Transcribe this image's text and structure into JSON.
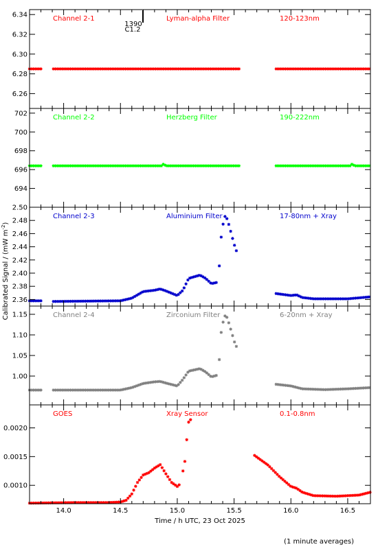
{
  "chart_data": {
    "type": "scatter",
    "marker": "asterisk",
    "xlabel": "Time / h UTC, 23 Oct 2025",
    "ylabel": "Calibrated Signal / (mW m",
    "ylabel_sup": "-2",
    "ylabel_close": ")",
    "footer": "(1 minute averages)",
    "xlim": [
      13.7,
      16.7
    ],
    "x_ticks": [
      "14.0",
      "14.5",
      "15.0",
      "15.5",
      "16.0",
      "16.5"
    ],
    "flare_marker": {
      "time": 14.705,
      "label_top": "1390",
      "label_bottom": "C1.2"
    },
    "panels": [
      {
        "name": "Channel 2-1",
        "filter": "Lyman-alpha Filter",
        "band": "120-123nm",
        "color": "#ff0000",
        "ylim": [
          6.245,
          6.345
        ],
        "y_ticks": [
          "6.26",
          "6.28",
          "6.30",
          "6.32",
          "6.34"
        ],
        "segments": [
          {
            "x": [
              13.7,
              13.81
            ],
            "y": [
              6.285,
              6.285
            ]
          },
          {
            "x": [
              13.91,
              15.55
            ],
            "y": [
              6.285,
              6.285
            ]
          },
          {
            "x": [
              15.87,
              16.7
            ],
            "y": [
              6.285,
              6.285
            ]
          }
        ]
      },
      {
        "name": "Channel 2-2",
        "filter": "Herzberg Filter",
        "band": "190-222nm",
        "color": "#00ff00",
        "ylim": [
          692.0,
          702.5
        ],
        "y_ticks": [
          "694",
          "696",
          "698",
          "700",
          "702"
        ],
        "segments": [
          {
            "x": [
              13.7,
              13.81
            ],
            "y": [
              696.4,
              696.4
            ]
          },
          {
            "x": [
              13.91,
              14.86,
              14.88,
              14.9,
              15.55
            ],
            "y": [
              696.4,
              696.4,
              696.6,
              696.4,
              696.4
            ]
          },
          {
            "x": [
              15.87,
              16.52,
              16.54,
              16.56,
              16.7
            ],
            "y": [
              696.4,
              696.4,
              696.6,
              696.4,
              696.4
            ]
          }
        ]
      },
      {
        "name": "Channel 2-3",
        "filter": "Aluminium Filter",
        "band": "17-80nm + Xray",
        "color": "#0000cc",
        "ylim": [
          2.35,
          2.5
        ],
        "y_ticks": [
          "2.36",
          "2.38",
          "2.40",
          "2.42",
          "2.44",
          "2.46",
          "2.48",
          "2.50"
        ],
        "segments": [
          {
            "x": [
              13.7,
              13.81
            ],
            "y": [
              2.358,
              2.358
            ]
          },
          {
            "x": [
              13.91,
              14.5,
              14.6,
              14.7,
              14.8,
              14.85,
              14.9,
              15.0,
              15.05,
              15.1,
              15.2,
              15.25,
              15.3,
              15.35
            ],
            "y": [
              2.357,
              2.358,
              2.362,
              2.372,
              2.374,
              2.376,
              2.373,
              2.366,
              2.374,
              2.392,
              2.397,
              2.392,
              2.384,
              2.386
            ]
          },
          {
            "x": [
              15.37,
              15.38,
              15.4,
              15.42,
              15.44,
              15.46,
              15.48,
              15.5,
              15.52
            ],
            "y": [
              2.411,
              2.446,
              2.472,
              2.486,
              2.482,
              2.47,
              2.457,
              2.444,
              2.434
            ]
          },
          {
            "x": [
              15.87,
              16.0,
              16.05,
              16.1,
              16.2,
              16.5,
              16.7
            ],
            "y": [
              2.369,
              2.366,
              2.367,
              2.363,
              2.361,
              2.361,
              2.364
            ]
          }
        ]
      },
      {
        "name": "Channel 2-4",
        "filter": "Zirconium Filter",
        "band": "6-20nm + Xray",
        "color": "#808080",
        "ylim": [
          0.93,
          1.17
        ],
        "y_ticks": [
          "1.00",
          "1.05",
          "1.10",
          "1.15"
        ],
        "segments": [
          {
            "x": [
              13.7,
              13.81
            ],
            "y": [
              0.966,
              0.966
            ]
          },
          {
            "x": [
              13.91,
              14.5,
              14.6,
              14.7,
              14.8,
              14.85,
              14.9,
              15.0,
              15.05,
              15.1,
              15.2,
              15.25,
              15.3,
              15.35
            ],
            "y": [
              0.966,
              0.966,
              0.972,
              0.982,
              0.986,
              0.987,
              0.983,
              0.976,
              0.992,
              1.012,
              1.018,
              1.01,
              0.998,
              1.002
            ]
          },
          {
            "x": [
              15.37,
              15.38,
              15.4,
              15.42,
              15.44,
              15.46,
              15.48,
              15.5,
              15.52
            ],
            "y": [
              1.04,
              1.095,
              1.128,
              1.146,
              1.142,
              1.123,
              1.105,
              1.085,
              1.072
            ]
          },
          {
            "x": [
              15.87,
              16.0,
              16.1,
              16.2,
              16.3,
              16.5,
              16.7
            ],
            "y": [
              0.98,
              0.976,
              0.969,
              0.968,
              0.967,
              0.969,
              0.972
            ]
          }
        ]
      },
      {
        "name": "GOES",
        "filter": "Xray Sensor",
        "band": "0.1-0.8nm",
        "color": "#ff0000",
        "ylim": [
          0.00068,
          0.0024
        ],
        "y_ticks": [
          "0.0010",
          "0.0015",
          "0.0020"
        ],
        "segments": [
          {
            "x": [
              13.7,
              14.1,
              14.4,
              14.5,
              14.55,
              14.6,
              14.65,
              14.7,
              14.75,
              14.8,
              14.85,
              14.9,
              14.95,
              15.0,
              15.03
            ],
            "y": [
              0.00069,
              0.0007,
              0.0007,
              0.00071,
              0.00074,
              0.00085,
              0.00105,
              0.00118,
              0.00122,
              0.0013,
              0.00136,
              0.0012,
              0.00105,
              0.00098,
              0.00103
            ]
          },
          {
            "x": [
              15.05,
              15.07,
              15.08,
              15.09,
              15.1,
              15.12
            ],
            "y": [
              0.00125,
              0.00145,
              0.0017,
              0.00198,
              0.0021,
              0.00215
            ]
          },
          {
            "x": [
              15.68,
              15.8,
              15.9,
              16.0,
              16.05,
              16.1,
              16.2,
              16.4,
              16.6,
              16.7
            ],
            "y": [
              0.00152,
              0.00135,
              0.00115,
              0.00098,
              0.00095,
              0.00088,
              0.00082,
              0.00081,
              0.00083,
              0.00088
            ]
          }
        ]
      }
    ]
  }
}
